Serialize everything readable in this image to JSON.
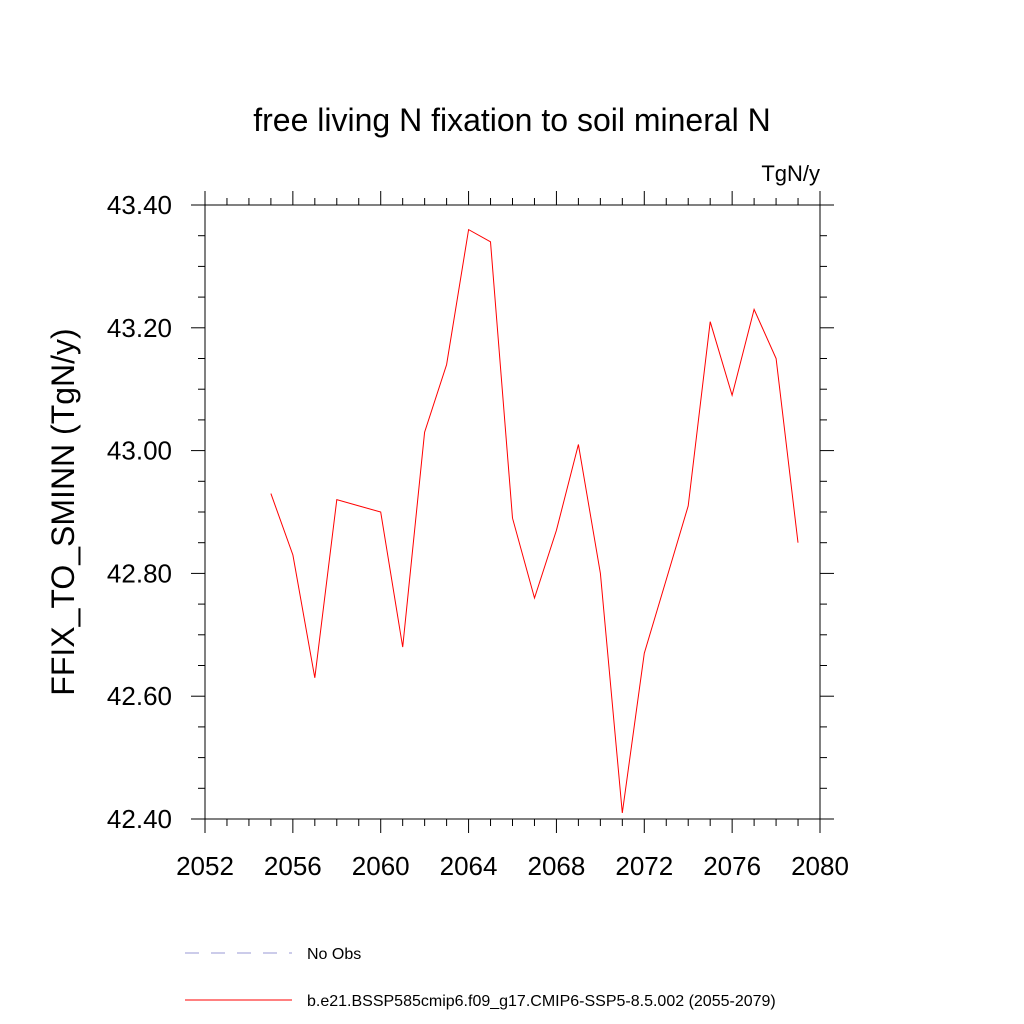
{
  "chart_data": {
    "type": "line",
    "title": "free living N fixation to soil mineral N",
    "units": "TgN/y",
    "xlabel": "",
    "ylabel": "FFIX_TO_SMINN  (TgN/y)",
    "xlim": [
      2052,
      2080
    ],
    "ylim": [
      42.4,
      43.4
    ],
    "x_ticks": [
      2052,
      2056,
      2060,
      2064,
      2068,
      2072,
      2076,
      2080
    ],
    "x_tick_labels": [
      "2052",
      "2056",
      "2060",
      "2064",
      "2068",
      "2072",
      "2076",
      "2080"
    ],
    "y_ticks": [
      42.4,
      42.6,
      42.8,
      43.0,
      43.2,
      43.4
    ],
    "y_tick_labels": [
      "42.40",
      "42.60",
      "42.80",
      "43.00",
      "43.20",
      "43.40"
    ],
    "grid": false,
    "series": [
      {
        "name": "b.e21.BSSP585cmip6.f09_g17.CMIP6-SSP5-8.5.002 (2055-2079)",
        "color": "#ff0000",
        "x": [
          2055,
          2056,
          2057,
          2058,
          2059,
          2060,
          2061,
          2062,
          2063,
          2064,
          2065,
          2066,
          2067,
          2068,
          2069,
          2070,
          2071,
          2072,
          2073,
          2074,
          2075,
          2076,
          2077,
          2078,
          2079
        ],
        "values": [
          42.93,
          42.83,
          42.63,
          42.92,
          42.91,
          42.9,
          42.68,
          43.03,
          43.14,
          43.36,
          43.34,
          42.89,
          42.76,
          42.87,
          43.01,
          42.8,
          42.41,
          42.67,
          42.79,
          42.91,
          43.21,
          43.09,
          43.23,
          43.15,
          42.85
        ]
      }
    ],
    "legend": [
      {
        "label": "No Obs",
        "style": "dashed",
        "color": "#9a9ad6"
      },
      {
        "label": "b.e21.BSSP585cmip6.f09_g17.CMIP6-SSP5-8.5.002 (2055-2079)",
        "style": "solid",
        "color": "#ff0000"
      }
    ],
    "legend_position": "bottom"
  }
}
